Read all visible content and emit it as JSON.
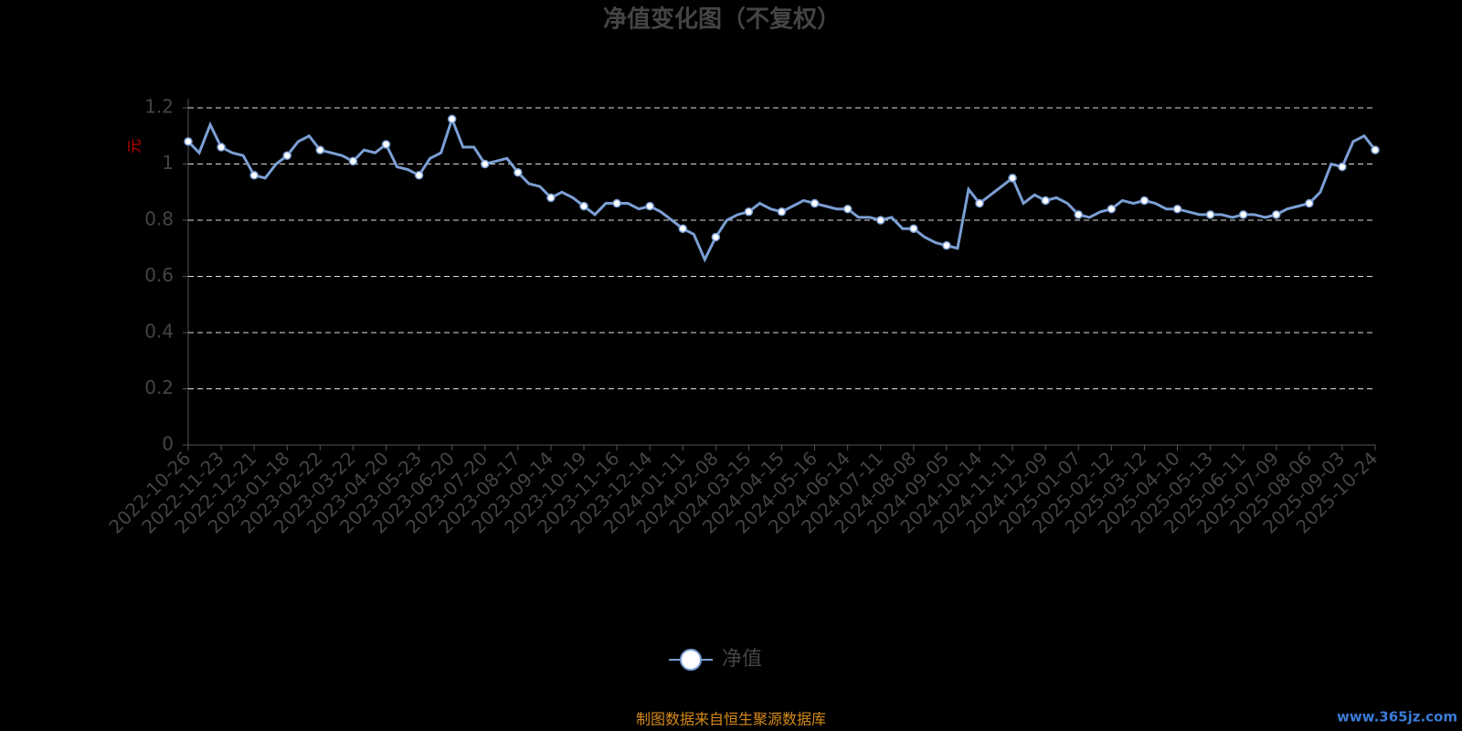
{
  "chart_data": {
    "type": "line",
    "title": "净值变化图（不复权）",
    "y_label": "元",
    "categories": [
      "2022-10-26",
      null,
      null,
      "2022-11-23",
      null,
      null,
      "2022-12-21",
      null,
      null,
      "2023-01-18",
      null,
      null,
      "2023-02-22",
      null,
      null,
      "2023-03-22",
      null,
      null,
      "2023-04-20",
      null,
      null,
      "2023-05-23",
      null,
      null,
      "2023-06-20",
      null,
      null,
      "2023-07-20",
      null,
      null,
      "2023-08-17",
      null,
      null,
      "2023-09-14",
      null,
      null,
      "2023-10-19",
      null,
      null,
      "2023-11-16",
      null,
      null,
      "2023-12-14",
      null,
      null,
      "2024-01-11",
      null,
      null,
      "2024-02-08",
      null,
      null,
      "2024-03-15",
      null,
      null,
      "2024-04-15",
      null,
      null,
      "2024-05-16",
      null,
      null,
      "2024-06-14",
      null,
      null,
      "2024-07-11",
      null,
      null,
      "2024-08-08",
      null,
      null,
      "2024-09-05",
      null,
      null,
      "2024-10-14",
      null,
      null,
      "2024-11-11",
      null,
      null,
      "2024-12-09",
      null,
      null,
      "2025-01-07",
      null,
      null,
      "2025-02-12",
      null,
      null,
      "2025-03-12",
      null,
      null,
      "2025-04-10",
      null,
      null,
      "2025-05-13",
      null,
      null,
      "2025-06-11",
      null,
      null,
      "2025-07-09",
      null,
      null,
      "2025-08-06",
      null,
      null,
      "2025-09-03",
      null,
      null,
      "2025-10-24"
    ],
    "series": [
      {
        "name": "净值",
        "color": "#7b9fd4",
        "values": [
          1.08,
          1.04,
          1.14,
          1.06,
          1.04,
          1.03,
          0.96,
          0.95,
          1.0,
          1.03,
          1.08,
          1.1,
          1.05,
          1.04,
          1.03,
          1.01,
          1.05,
          1.04,
          1.07,
          0.99,
          0.98,
          0.96,
          1.02,
          1.04,
          1.16,
          1.06,
          1.06,
          1.0,
          1.01,
          1.02,
          0.97,
          0.93,
          0.92,
          0.88,
          0.9,
          0.88,
          0.85,
          0.82,
          0.86,
          0.86,
          0.86,
          0.84,
          0.85,
          0.83,
          0.8,
          0.77,
          0.75,
          0.66,
          0.74,
          0.8,
          0.82,
          0.83,
          0.86,
          0.84,
          0.83,
          0.85,
          0.87,
          0.86,
          0.85,
          0.84,
          0.84,
          0.81,
          0.81,
          0.8,
          0.81,
          0.77,
          0.77,
          0.74,
          0.72,
          0.71,
          0.7,
          0.91,
          0.86,
          0.89,
          0.92,
          0.95,
          0.86,
          0.89,
          0.87,
          0.88,
          0.86,
          0.82,
          0.81,
          0.83,
          0.84,
          0.87,
          0.86,
          0.87,
          0.86,
          0.84,
          0.84,
          0.83,
          0.82,
          0.82,
          0.82,
          0.81,
          0.82,
          0.82,
          0.81,
          0.82,
          0.84,
          0.85,
          0.86,
          0.9,
          1.0,
          0.99,
          1.08,
          1.1,
          1.05
        ]
      }
    ],
    "ylim": [
      0,
      1.2
    ],
    "yticks": [
      0,
      0.2,
      0.4,
      0.6,
      0.8,
      1,
      1.2
    ],
    "grid": true,
    "source": "制图数据来自恒生聚源数据库",
    "watermark": "www.365jz.com"
  }
}
